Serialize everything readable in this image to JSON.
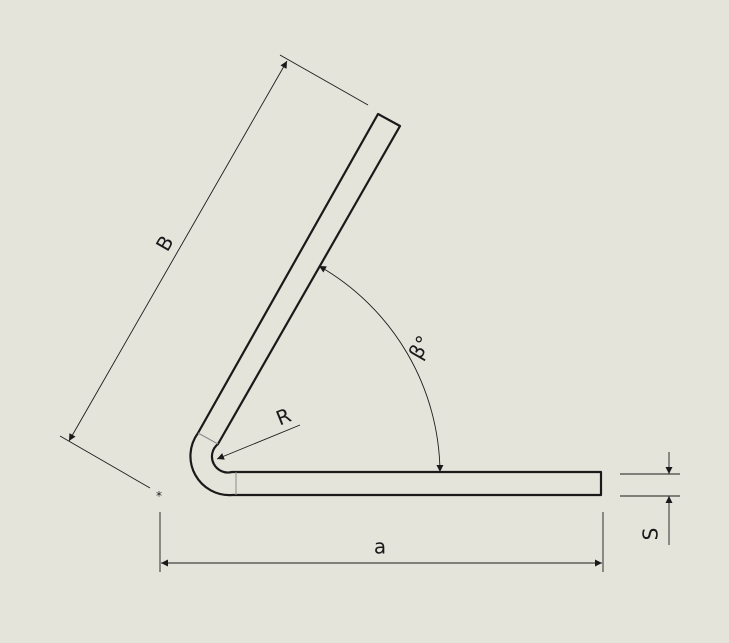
{
  "drawing": {
    "dimensions": {
      "flange_length_label": "B",
      "base_length_label": "a",
      "bend_radius_label": "R",
      "bend_angle_label": "β°",
      "thickness_label": "S"
    },
    "origin_marker": "*",
    "colors": {
      "background": "#e5e4db",
      "line": "#1a1a1a",
      "tangent_edge": "#8a8a8a"
    }
  }
}
